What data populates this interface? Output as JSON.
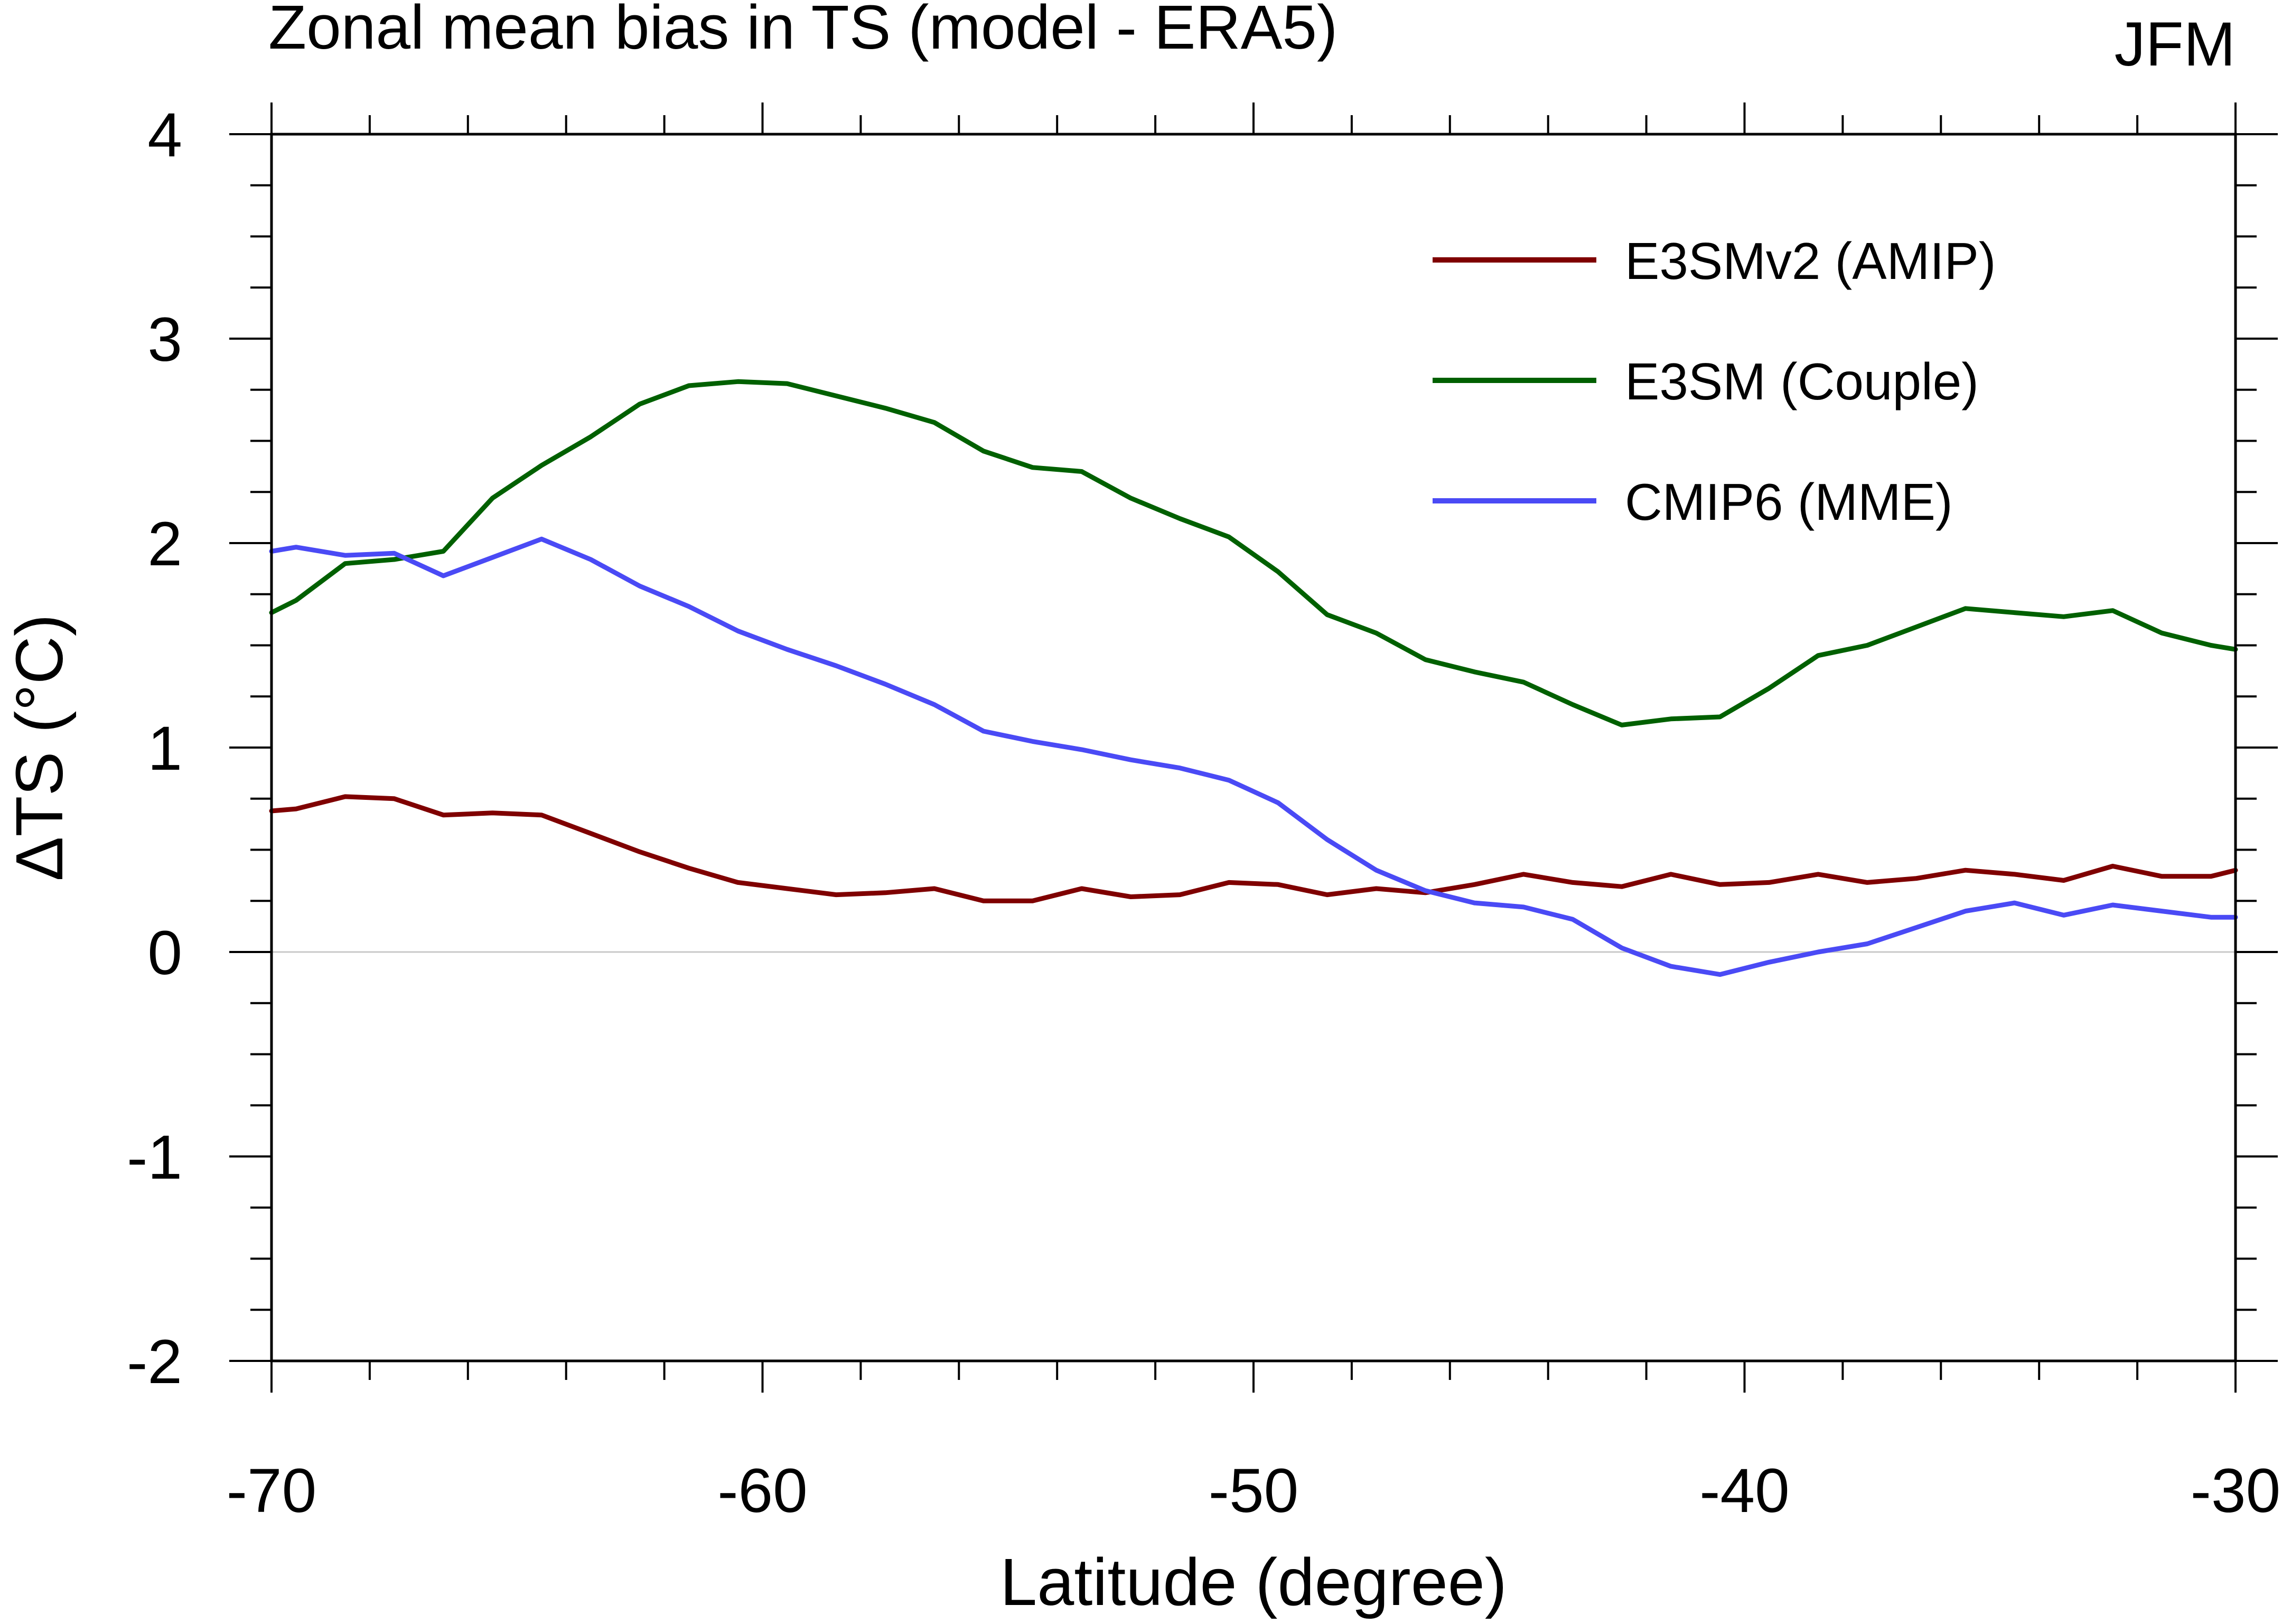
{
  "chart_data": {
    "type": "line",
    "title": "Zonal mean bias in TS (model - ERA5)",
    "season": "JFM",
    "xlabel": "Latitude (degree)",
    "ylabel": "ΔTS (°C)",
    "xlim": [
      -70,
      -30
    ],
    "ylim": [
      -2,
      4
    ],
    "xticks": [
      -70,
      -60,
      -50,
      -40,
      -30
    ],
    "yticks": [
      -2,
      -1,
      0,
      1,
      2,
      3,
      4
    ],
    "zero_line": true,
    "legend_position": "top-right",
    "x": [
      -70,
      -69.5,
      -68.5,
      -67.5,
      -66.5,
      -65.5,
      -64.5,
      -63.5,
      -62.5,
      -61.5,
      -60.5,
      -59.5,
      -58.5,
      -57.5,
      -56.5,
      -55.5,
      -54.5,
      -53.5,
      -52.5,
      -51.5,
      -50.5,
      -49.5,
      -48.5,
      -47.5,
      -46.5,
      -45.5,
      -44.5,
      -43.5,
      -42.5,
      -41.5,
      -40.5,
      -39.5,
      -38.5,
      -37.5,
      -36.5,
      -35.5,
      -34.5,
      -33.5,
      -32.5,
      -31.5,
      -30.5,
      -30
    ],
    "series": [
      {
        "name": "E3SMv2 (AMIP)",
        "color": "#7f0000",
        "values": [
          0.69,
          0.7,
          0.76,
          0.75,
          0.67,
          0.68,
          0.67,
          0.58,
          0.49,
          0.41,
          0.34,
          0.31,
          0.28,
          0.29,
          0.31,
          0.25,
          0.25,
          0.31,
          0.27,
          0.28,
          0.34,
          0.33,
          0.28,
          0.31,
          0.29,
          0.33,
          0.38,
          0.34,
          0.32,
          0.38,
          0.33,
          0.34,
          0.38,
          0.34,
          0.36,
          0.4,
          0.38,
          0.35,
          0.42,
          0.37,
          0.37,
          0.4
        ]
      },
      {
        "name": "E3SM (Couple)",
        "color": "#006000",
        "values": [
          1.66,
          1.72,
          1.9,
          1.92,
          1.96,
          2.22,
          2.38,
          2.52,
          2.68,
          2.77,
          2.79,
          2.78,
          2.72,
          2.66,
          2.59,
          2.45,
          2.37,
          2.35,
          2.22,
          2.12,
          2.03,
          1.86,
          1.65,
          1.56,
          1.43,
          1.37,
          1.32,
          1.21,
          1.11,
          1.14,
          1.15,
          1.29,
          1.45,
          1.5,
          1.59,
          1.68,
          1.66,
          1.64,
          1.67,
          1.56,
          1.5,
          1.48
        ]
      },
      {
        "name": "CMIP6 (MME)",
        "color": "#4a4af5",
        "values": [
          1.96,
          1.98,
          1.94,
          1.95,
          1.84,
          1.93,
          2.02,
          1.92,
          1.79,
          1.69,
          1.57,
          1.48,
          1.4,
          1.31,
          1.21,
          1.08,
          1.03,
          0.99,
          0.94,
          0.9,
          0.84,
          0.73,
          0.55,
          0.4,
          0.3,
          0.24,
          0.22,
          0.16,
          0.02,
          -0.07,
          -0.11,
          -0.05,
          0.0,
          0.04,
          0.12,
          0.2,
          0.24,
          0.18,
          0.23,
          0.2,
          0.17,
          0.17
        ]
      }
    ]
  }
}
